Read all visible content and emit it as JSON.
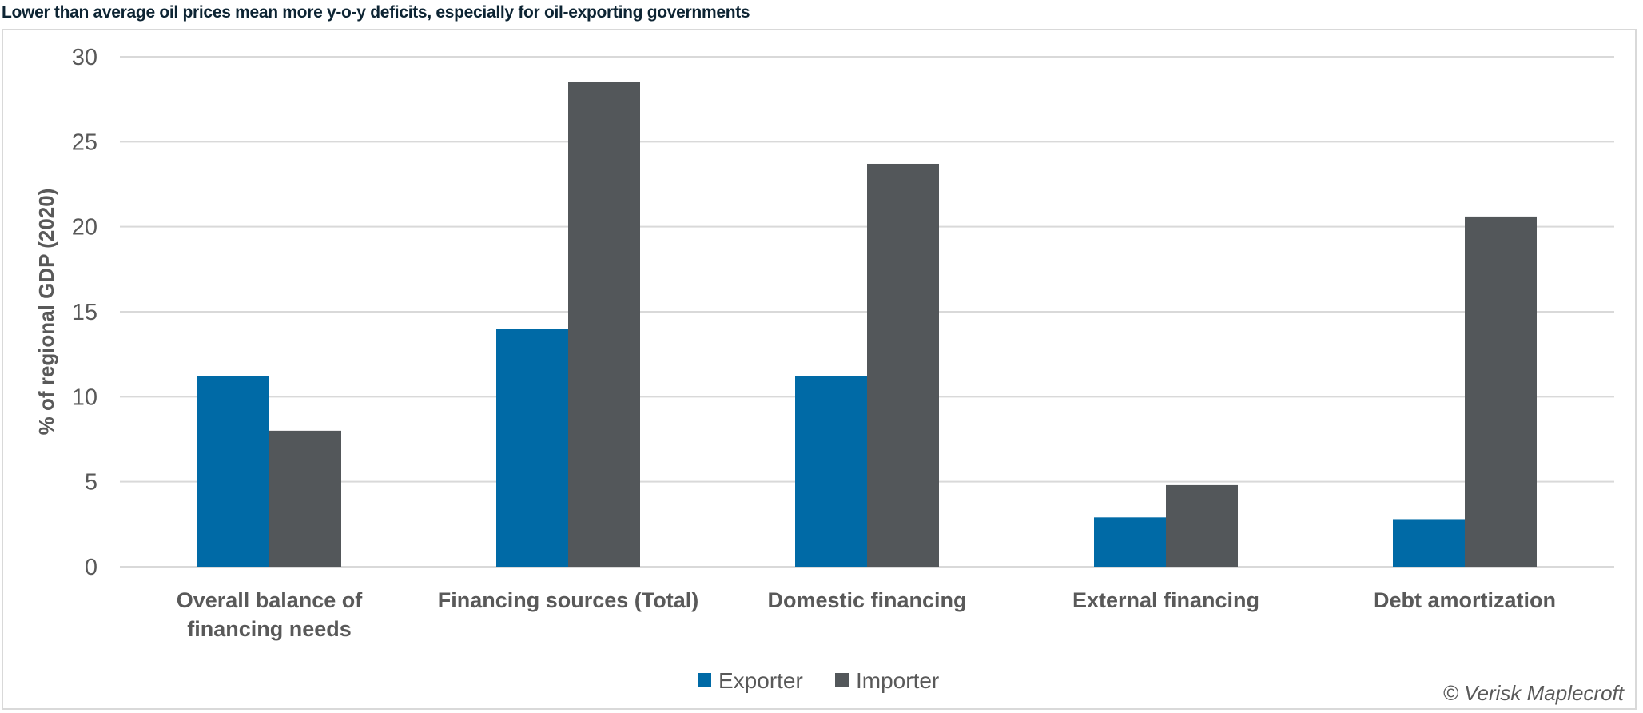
{
  "title": "Lower than average oil prices mean more y-o-y deficits, especially for oil-exporting governments",
  "credit": "© Verisk Maplecroft",
  "chart_data": {
    "type": "bar",
    "title": "",
    "xlabel": "",
    "ylabel": "% of regional GDP (2020)",
    "ylim": [
      0,
      30
    ],
    "yticks": [
      0,
      5,
      10,
      15,
      20,
      25,
      30
    ],
    "grid": true,
    "legend_position": "bottom",
    "categories": [
      [
        "Overall balance of",
        "financing needs"
      ],
      [
        "Financing sources (Total)"
      ],
      [
        "Domestic financing"
      ],
      [
        "External financing"
      ],
      [
        "Debt amortization"
      ]
    ],
    "series": [
      {
        "name": "Exporter",
        "color": "#006aa6",
        "values": [
          11.2,
          14.0,
          11.2,
          2.9,
          2.8
        ]
      },
      {
        "name": "Importer",
        "color": "#53575a",
        "values": [
          8.0,
          28.5,
          23.7,
          4.8,
          20.6
        ]
      }
    ]
  }
}
